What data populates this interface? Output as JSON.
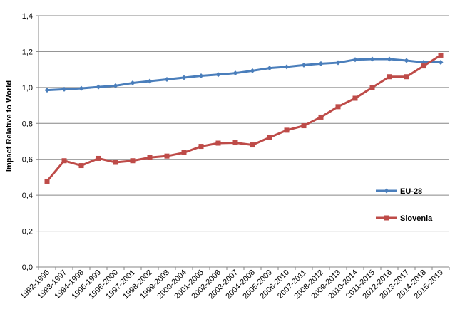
{
  "chart_data": {
    "type": "line",
    "title": "",
    "xlabel": "",
    "ylabel": "Impact Relative to World",
    "ylim": [
      0,
      1.4
    ],
    "yticks": [
      "0,0",
      "0,2",
      "0,4",
      "0,6",
      "0,8",
      "1,0",
      "1,2",
      "1,4"
    ],
    "grid": "horizontal",
    "legend_position": "right",
    "categories": [
      "1992-1996",
      "1993-1997",
      "1994-1998",
      "1995-1999",
      "1996-2000",
      "1997-2001",
      "1998-2002",
      "1999-2003",
      "2000-2004",
      "2001-2005",
      "2002-2006",
      "2003-2007",
      "2004-2008",
      "2005-2009",
      "2006-2010",
      "2007-2011",
      "2008-2012",
      "2009-2013",
      "2010-2014",
      "2011-2015",
      "2012-2016",
      "2013-2017",
      "2014-2018",
      "2015-2019"
    ],
    "series": [
      {
        "name": "EU-28",
        "color": "#4a7ebb",
        "marker": "diamond",
        "values": [
          0.985,
          0.99,
          0.995,
          1.003,
          1.01,
          1.025,
          1.035,
          1.045,
          1.055,
          1.065,
          1.072,
          1.08,
          1.093,
          1.108,
          1.115,
          1.125,
          1.133,
          1.138,
          1.155,
          1.158,
          1.158,
          1.15,
          1.14,
          1.14
        ]
      },
      {
        "name": "Slovenia",
        "color": "#be4b48",
        "marker": "square",
        "values": [
          0.478,
          0.592,
          0.565,
          0.605,
          0.583,
          0.592,
          0.61,
          0.618,
          0.637,
          0.672,
          0.69,
          0.692,
          0.68,
          0.722,
          0.762,
          0.787,
          0.835,
          0.893,
          0.94,
          1.0,
          1.06,
          1.06,
          1.12,
          1.18
        ]
      }
    ]
  }
}
